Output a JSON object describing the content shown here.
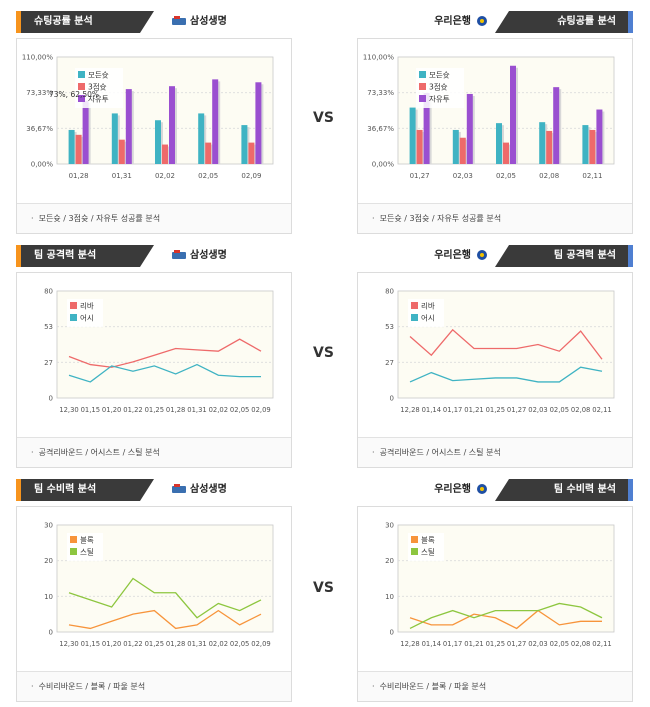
{
  "sections": [
    {
      "id": "success",
      "title": "슈팅공률 분석",
      "footer": "모든슛 / 3점슛 / 자유투 성공률 분석",
      "vs": "VS"
    },
    {
      "id": "attack",
      "title": "팀 공격력 분석",
      "footer": "공격리바운드 / 어시스트 / 스틸 분석",
      "vs": "VS"
    },
    {
      "id": "defense",
      "title": "팀 수비력 분석",
      "footer": "수비리바운드 / 블록 / 파울 분석",
      "vs": "VS"
    }
  ],
  "teams": {
    "left": "삼성생명",
    "right": "우리은행"
  },
  "colors": {
    "allshot": "#3fb3c3",
    "three": "#ee6a6a",
    "freethrow": "#9a4fd0",
    "rebound": "#ee6a6a",
    "assist": "#3fb3c3",
    "block": "#f7943b",
    "steal": "#8dc63f",
    "accent_left": "#f7941d",
    "accent_right": "#4f7fd1"
  },
  "chart_data": [
    {
      "panel": "success-left",
      "type": "bar",
      "categories": [
        "01,28",
        "01,31",
        "02,02",
        "02,05",
        "02,09"
      ],
      "yticks": [
        "0,00%",
        "36,67%",
        "73,33%",
        "110,00%"
      ],
      "ylim": [
        0,
        110
      ],
      "tooltip": "73%, 62,50%",
      "series": [
        {
          "name": "모든슛",
          "values": [
            35,
            52,
            45,
            52,
            40
          ]
        },
        {
          "name": "3점슛",
          "values": [
            30,
            25,
            20,
            22,
            22
          ]
        },
        {
          "name": "자유투",
          "values": [
            65,
            77,
            80,
            87,
            84
          ]
        }
      ]
    },
    {
      "panel": "success-right",
      "type": "bar",
      "categories": [
        "01,27",
        "02,03",
        "02,05",
        "02,08",
        "02,11"
      ],
      "yticks": [
        "0,00%",
        "36,67%",
        "73,33%",
        "110,00%"
      ],
      "ylim": [
        0,
        110
      ],
      "series": [
        {
          "name": "모든슛",
          "values": [
            58,
            35,
            42,
            43,
            40
          ]
        },
        {
          "name": "3점슛",
          "values": [
            35,
            27,
            22,
            34,
            35
          ]
        },
        {
          "name": "자유투",
          "values": [
            73,
            72,
            101,
            79,
            56
          ]
        }
      ]
    },
    {
      "panel": "attack-left",
      "type": "line",
      "categories": [
        "12,30",
        "01,15",
        "01,20",
        "01,22",
        "01,25",
        "01,28",
        "01,31",
        "02,02",
        "02,05",
        "02,09"
      ],
      "yticks": [
        "0",
        "27",
        "53",
        "80"
      ],
      "ylim": [
        0,
        80
      ],
      "series": [
        {
          "name": "리바",
          "values": [
            31,
            25,
            23,
            27,
            32,
            37,
            36,
            35,
            44,
            35
          ]
        },
        {
          "name": "어시",
          "values": [
            17,
            12,
            24,
            20,
            24,
            18,
            25,
            17,
            16,
            16
          ]
        }
      ]
    },
    {
      "panel": "attack-right",
      "type": "line",
      "categories": [
        "12,28",
        "01,14",
        "01,17",
        "01,21",
        "01,25",
        "01,27",
        "02,03",
        "02,05",
        "02,08",
        "02,11"
      ],
      "yticks": [
        "0",
        "27",
        "53",
        "80"
      ],
      "ylim": [
        0,
        80
      ],
      "series": [
        {
          "name": "리바",
          "values": [
            46,
            32,
            51,
            37,
            37,
            37,
            40,
            35,
            50,
            29
          ]
        },
        {
          "name": "어시",
          "values": [
            12,
            19,
            13,
            14,
            15,
            15,
            12,
            12,
            23,
            20
          ]
        }
      ]
    },
    {
      "panel": "defense-left",
      "type": "line",
      "categories": [
        "12,30",
        "01,15",
        "01,20",
        "01,22",
        "01,25",
        "01,28",
        "01,31",
        "02,02",
        "02,05",
        "02,09"
      ],
      "yticks": [
        "0",
        "10",
        "20",
        "30"
      ],
      "ylim": [
        0,
        30
      ],
      "series": [
        {
          "name": "블록",
          "values": [
            2,
            1,
            3,
            5,
            6,
            1,
            2,
            6,
            2,
            5
          ]
        },
        {
          "name": "스틸",
          "values": [
            11,
            9,
            7,
            15,
            11,
            11,
            4,
            8,
            6,
            9
          ]
        }
      ]
    },
    {
      "panel": "defense-right",
      "type": "line",
      "categories": [
        "12,28",
        "01,14",
        "01,17",
        "01,21",
        "01,25",
        "01,27",
        "02,03",
        "02,05",
        "02,08",
        "02,11"
      ],
      "yticks": [
        "0",
        "10",
        "20",
        "30"
      ],
      "ylim": [
        0,
        30
      ],
      "series": [
        {
          "name": "블록",
          "values": [
            4,
            2,
            2,
            5,
            4,
            1,
            6,
            2,
            3,
            3
          ]
        },
        {
          "name": "스틸",
          "values": [
            1,
            4,
            6,
            4,
            6,
            6,
            6,
            8,
            7,
            4
          ]
        }
      ]
    }
  ]
}
